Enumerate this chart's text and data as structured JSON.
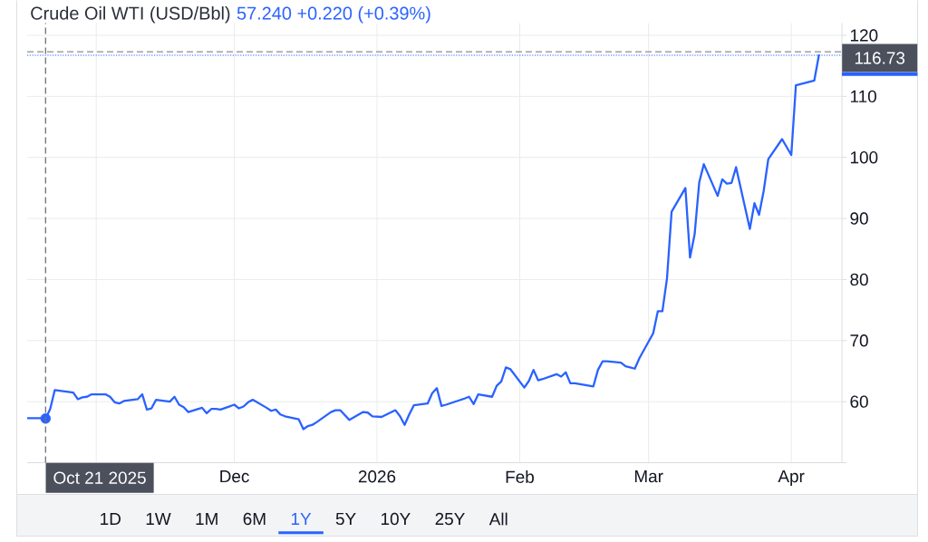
{
  "chart_data": {
    "type": "line",
    "title": "Crude Oil WTI (USD/Bbl)",
    "subtitle": "57.240 +0.220 (+0.39%)",
    "x": [
      "2025-10-17",
      "2025-10-20",
      "2025-10-21",
      "2025-10-22",
      "2025-10-23",
      "2025-10-27",
      "2025-10-28",
      "2025-10-29",
      "2025-10-30",
      "2025-10-31",
      "2025-11-03",
      "2025-11-04",
      "2025-11-05",
      "2025-11-06",
      "2025-11-07",
      "2025-11-10",
      "2025-11-11",
      "2025-11-12",
      "2025-11-13",
      "2025-11-14",
      "2025-11-17",
      "2025-11-18",
      "2025-11-19",
      "2025-11-20",
      "2025-11-21",
      "2025-11-24",
      "2025-11-25",
      "2025-11-26",
      "2025-11-27",
      "2025-11-28",
      "2025-12-01",
      "2025-12-02",
      "2025-12-03",
      "2025-12-04",
      "2025-12-05",
      "2025-12-08",
      "2025-12-09",
      "2025-12-10",
      "2025-12-11",
      "2025-12-12",
      "2025-12-15",
      "2025-12-16",
      "2025-12-17",
      "2025-12-18",
      "2025-12-19",
      "2025-12-22",
      "2025-12-23",
      "2025-12-24",
      "2025-12-26",
      "2025-12-29",
      "2025-12-30",
      "2025-12-31",
      "2026-01-02",
      "2026-01-05",
      "2026-01-06",
      "2026-01-07",
      "2026-01-08",
      "2026-01-09",
      "2026-01-12",
      "2026-01-13",
      "2026-01-14",
      "2026-01-15",
      "2026-01-16",
      "2026-01-20",
      "2026-01-21",
      "2026-01-22",
      "2026-01-23",
      "2026-01-26",
      "2026-01-27",
      "2026-01-28",
      "2026-01-29",
      "2026-01-30",
      "2026-02-02",
      "2026-02-03",
      "2026-02-04",
      "2026-02-05",
      "2026-02-06",
      "2026-02-09",
      "2026-02-10",
      "2026-02-11",
      "2026-02-12",
      "2026-02-13",
      "2026-02-17",
      "2026-02-18",
      "2026-02-19",
      "2026-02-20",
      "2026-02-23",
      "2026-02-24",
      "2026-02-25",
      "2026-02-26",
      "2026-02-27",
      "2026-03-02",
      "2026-03-03",
      "2026-03-04",
      "2026-03-05",
      "2026-03-06",
      "2026-03-09",
      "2026-03-10",
      "2026-03-11",
      "2026-03-12",
      "2026-03-13",
      "2026-03-16",
      "2026-03-17",
      "2026-03-18",
      "2026-03-19",
      "2026-03-20",
      "2026-03-23",
      "2026-03-24",
      "2026-03-25",
      "2026-03-26",
      "2026-03-27",
      "2026-03-30",
      "2026-04-01",
      "2026-04-02",
      "2026-04-06",
      "2026-04-07"
    ],
    "series": [
      {
        "color": "#2962ff",
        "values": [
          57.3,
          57.3,
          57.24,
          58.8,
          61.9,
          61.5,
          60.4,
          60.7,
          60.8,
          61.2,
          61.2,
          60.8,
          59.9,
          59.7,
          60.1,
          60.4,
          61.2,
          58.7,
          58.9,
          60.3,
          60.0,
          60.8,
          59.5,
          59.1,
          58.3,
          59.0,
          58.1,
          58.8,
          58.8,
          58.7,
          59.5,
          58.9,
          59.2,
          59.9,
          60.3,
          59.0,
          58.5,
          58.7,
          57.9,
          57.6,
          57.1,
          55.5,
          56.0,
          56.2,
          56.7,
          58.3,
          58.6,
          58.6,
          57.0,
          58.3,
          58.2,
          57.6,
          57.5,
          58.6,
          57.6,
          56.2,
          57.9,
          59.4,
          59.7,
          61.4,
          62.2,
          59.3,
          59.5,
          60.5,
          60.8,
          59.6,
          61.2,
          60.8,
          62.6,
          63.3,
          65.6,
          65.3,
          62.3,
          63.4,
          65.2,
          63.5,
          63.7,
          64.5,
          64.1,
          64.8,
          63.0,
          63.0,
          62.5,
          65.2,
          66.6,
          66.6,
          66.4,
          65.8,
          65.6,
          65.4,
          67.1,
          71.2,
          74.8,
          74.8,
          80.2,
          91.1,
          95.0,
          83.6,
          87.4,
          95.9,
          98.9,
          93.7,
          96.4,
          95.7,
          95.8,
          98.4,
          88.3,
          92.5,
          90.6,
          94.5,
          99.7,
          103.0,
          100.4,
          111.8,
          112.6,
          116.73
        ]
      },
      {
        "type": "scatter",
        "marker": "circle",
        "color": "#2962ff",
        "x": [
          "2025-10-21"
        ],
        "values": [
          57.24
        ]
      }
    ],
    "xlim": [
      "2025-10-17",
      "2026-04-12"
    ],
    "xticks": [
      {
        "value": "2025-11-01",
        "label": null
      },
      {
        "value": "2025-12-01",
        "label": "Dec"
      },
      {
        "value": "2026-01-01",
        "label": "2026"
      },
      {
        "value": "2026-02-01",
        "label": "Feb"
      },
      {
        "value": "2026-03-01",
        "label": "Mar"
      },
      {
        "value": "2026-04-01",
        "label": "Apr"
      }
    ],
    "ylim": [
      50,
      122
    ],
    "yticks": [
      {
        "value": 50,
        "label": null
      },
      60,
      70,
      80,
      90,
      100,
      110,
      120
    ],
    "grid": true,
    "ref_lines": [
      {
        "axis": "x",
        "value": "2025-10-21",
        "label": "Oct 21 2025",
        "color": "#6f7278",
        "line_style": "dashed"
      },
      {
        "axis": "y",
        "value": 117.3,
        "color": "#8a8d93",
        "line_style": "dashed"
      },
      {
        "axis": "y",
        "value": 116.73,
        "label": "116.73",
        "color": "#2962ff",
        "line_style": "dotted"
      }
    ],
    "annotations": [
      "1D",
      "1W",
      "1M",
      "6M",
      "1Y",
      "5Y",
      "10Y",
      "25Y",
      "All"
    ]
  }
}
